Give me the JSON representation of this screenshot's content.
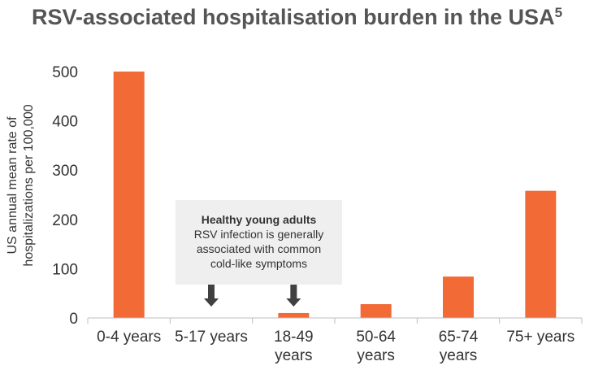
{
  "title": "RSV-associated hospitalisation burden in the USA",
  "title_superscript": "5",
  "colors": {
    "bar": "#f26a36",
    "axis": "#bfbfbf",
    "arrow": "#404040",
    "callout_bg": "#efefef"
  },
  "chart_data": {
    "type": "bar",
    "categories": [
      "0-4 years",
      "5-17 years",
      "18-49 years",
      "50-64 years",
      "65-74 years",
      "75+ years"
    ],
    "category_lines": [
      [
        "0-4 years"
      ],
      [
        "5-17 years"
      ],
      [
        "18-49",
        "years"
      ],
      [
        "50-64",
        "years"
      ],
      [
        "65-74",
        "years"
      ],
      [
        "75+ years"
      ]
    ],
    "values": [
      500,
      0,
      10,
      28,
      84,
      258
    ],
    "ylabel_lines": [
      "US annual mean rate of",
      "hospitalizations per 100,000"
    ],
    "xlabel": "",
    "ylim": [
      0,
      500
    ],
    "yticks": [
      0,
      100,
      200,
      300,
      400,
      500
    ],
    "grid": false
  },
  "callout": {
    "title": "Healthy young adults",
    "body": "RSV infection is generally associated with common cold-like symptoms",
    "arrow_categories": [
      1,
      2
    ]
  }
}
